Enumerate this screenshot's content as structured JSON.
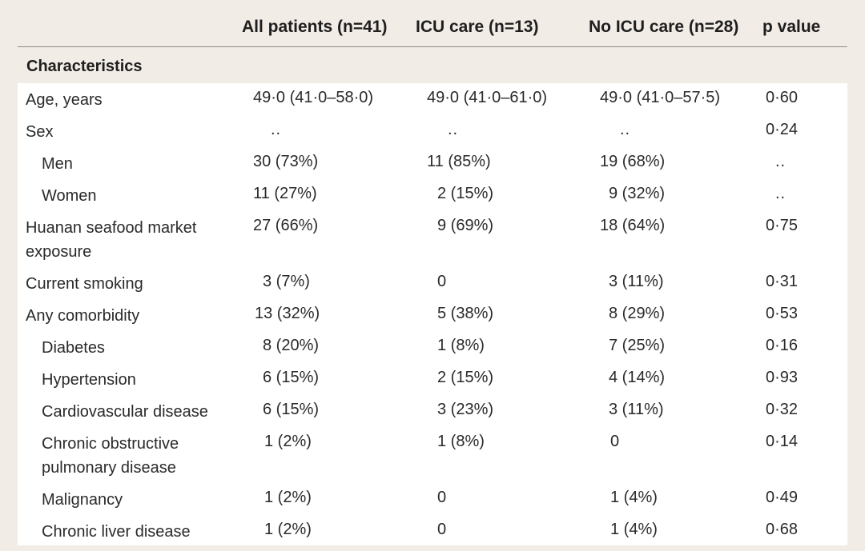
{
  "table": {
    "headers": {
      "all": "All patients (n=41)",
      "icu": "ICU care (n=13)",
      "no_icu": "No ICU care (n=28)",
      "p": "p value"
    },
    "section_title": "Characteristics",
    "rows": [
      {
        "label": "Age, years",
        "indent": false,
        "all": "49·0 (41·0–58·0)",
        "icu": "49·0 (41·0–61·0)",
        "no_icu": "49·0 (41·0–57·5)",
        "p": "0·60"
      },
      {
        "label": "Sex",
        "indent": false,
        "all": "..",
        "icu": "..",
        "no_icu": "..",
        "p": "0·24"
      },
      {
        "label": "Men",
        "indent": true,
        "all": "30 (73%)",
        "icu": "11 (85%)",
        "no_icu": "19 (68%)",
        "p": ".."
      },
      {
        "label": "Women",
        "indent": true,
        "all": "11 (27%)",
        "icu": "2 (15%)",
        "no_icu": "9 (32%)",
        "p": ".."
      },
      {
        "label": "Huanan seafood market",
        "label2": "exposure",
        "indent": false,
        "all": "27 (66%)",
        "icu": "9 (69%)",
        "no_icu": "18 (64%)",
        "p": "0·75"
      },
      {
        "label": "Current smoking",
        "indent": false,
        "all": "3 (7%)",
        "icu": "0",
        "no_icu": "3 (11%)",
        "p": "0·31"
      },
      {
        "label": "Any comorbidity",
        "indent": false,
        "all": "13 (32%)",
        "icu": "5 (38%)",
        "no_icu": "8 (29%)",
        "p": "0·53"
      },
      {
        "label": "Diabetes",
        "indent": true,
        "all": "8 (20%)",
        "icu": "1 (8%)",
        "no_icu": "7 (25%)",
        "p": "0·16"
      },
      {
        "label": "Hypertension",
        "indent": true,
        "all": "6 (15%)",
        "icu": "2 (15%)",
        "no_icu": "4 (14%)",
        "p": "0·93"
      },
      {
        "label": "Cardiovascular disease",
        "indent": true,
        "all": "6 (15%)",
        "icu": "3 (23%)",
        "no_icu": "3 (11%)",
        "p": "0·32"
      },
      {
        "label": "Chronic obstructive",
        "label2": "pulmonary disease",
        "indent": true,
        "all": "1 (2%)",
        "icu": "1 (8%)",
        "no_icu": "0",
        "p": "0·14"
      },
      {
        "label": "Malignancy",
        "indent": true,
        "all": "1 (2%)",
        "icu": "0",
        "no_icu": "1 (4%)",
        "p": "0·49"
      },
      {
        "label": "Chronic liver disease",
        "indent": true,
        "all": "1 (2%)",
        "icu": "0",
        "no_icu": "1 (4%)",
        "p": "0·68"
      }
    ]
  }
}
